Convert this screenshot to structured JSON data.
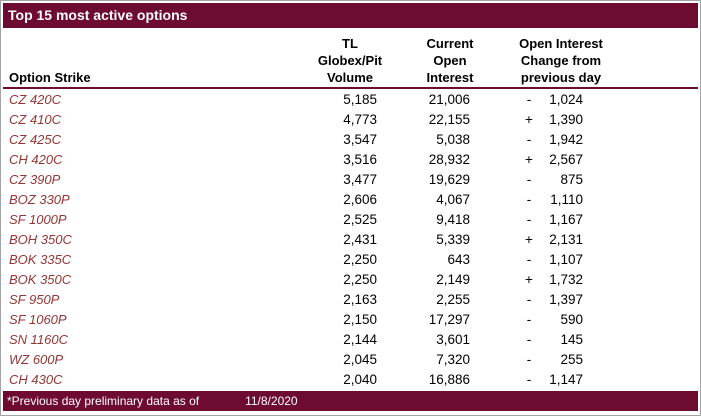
{
  "title": "Top 15 most active options",
  "colors": {
    "maroon_bar": "#6e0b32",
    "strike_text": "#943634",
    "outer_border": "#a3a3a3",
    "body_text": "#000000",
    "header_bar_text": "#ffffff"
  },
  "table": {
    "columns": {
      "option_strike": "Option Strike",
      "volume_lines": [
        "TL Globex/Pit",
        "Volume"
      ],
      "open_interest_lines": [
        "Current",
        "Open",
        "Interest"
      ],
      "change_lines": [
        "Open Interest",
        "Change from",
        "previous day"
      ]
    },
    "rows": [
      {
        "strike": "CZ 420C",
        "volume": "5,185",
        "open_interest": "21,006",
        "change_sign": "-",
        "change_value": "1,024"
      },
      {
        "strike": "CZ 410C",
        "volume": "4,773",
        "open_interest": "22,155",
        "change_sign": "+",
        "change_value": "1,390"
      },
      {
        "strike": "CZ 425C",
        "volume": "3,547",
        "open_interest": "5,038",
        "change_sign": "-",
        "change_value": "1,942"
      },
      {
        "strike": "CH 420C",
        "volume": "3,516",
        "open_interest": "28,932",
        "change_sign": "+",
        "change_value": "2,567"
      },
      {
        "strike": "CZ 390P",
        "volume": "3,477",
        "open_interest": "19,629",
        "change_sign": "-",
        "change_value": "875"
      },
      {
        "strike": "BOZ 330P",
        "volume": "2,606",
        "open_interest": "4,067",
        "change_sign": "-",
        "change_value": "1,110"
      },
      {
        "strike": "SF 1000P",
        "volume": "2,525",
        "open_interest": "9,418",
        "change_sign": "-",
        "change_value": "1,167"
      },
      {
        "strike": "BOH 350C",
        "volume": "2,431",
        "open_interest": "5,339",
        "change_sign": "+",
        "change_value": "2,131"
      },
      {
        "strike": "BOK 335C",
        "volume": "2,250",
        "open_interest": "643",
        "change_sign": "-",
        "change_value": "1,107"
      },
      {
        "strike": "BOK 350C",
        "volume": "2,250",
        "open_interest": "2,149",
        "change_sign": "+",
        "change_value": "1,732"
      },
      {
        "strike": "SF 950P",
        "volume": "2,163",
        "open_interest": "2,255",
        "change_sign": "-",
        "change_value": "1,397"
      },
      {
        "strike": "SF 1060P",
        "volume": "2,150",
        "open_interest": "17,297",
        "change_sign": "-",
        "change_value": "590"
      },
      {
        "strike": "SN 1160C",
        "volume": "2,144",
        "open_interest": "3,601",
        "change_sign": "-",
        "change_value": "145"
      },
      {
        "strike": "WZ 600P",
        "volume": "2,045",
        "open_interest": "7,320",
        "change_sign": "-",
        "change_value": "255"
      },
      {
        "strike": "CH 430C",
        "volume": "2,040",
        "open_interest": "16,886",
        "change_sign": "-",
        "change_value": "1,147"
      }
    ]
  },
  "footer": {
    "note": "*Previous day preliminary data as of",
    "date": "11/8/2020"
  }
}
